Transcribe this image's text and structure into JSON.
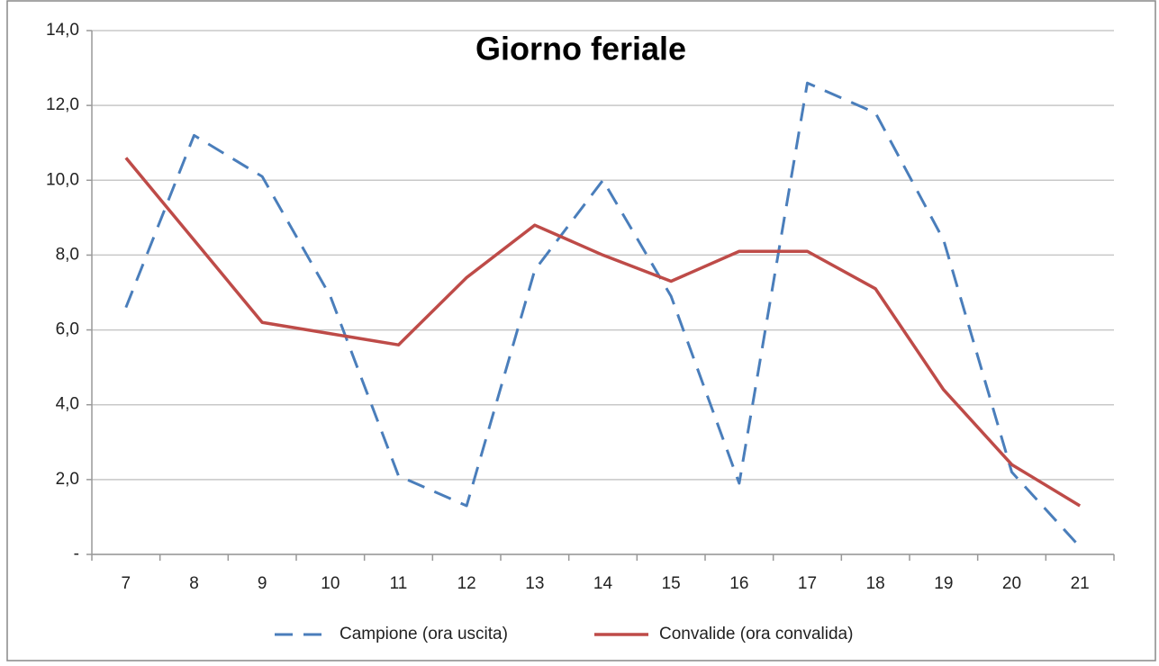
{
  "chart_data": {
    "type": "line",
    "title": "Giorno feriale",
    "categories": [
      "7",
      "8",
      "9",
      "10",
      "11",
      "12",
      "13",
      "14",
      "15",
      "16",
      "17",
      "18",
      "19",
      "20",
      "21"
    ],
    "series": [
      {
        "name": "Campione (ora uscita)",
        "color": "#4a7ebb",
        "dash": true,
        "values": [
          6.6,
          11.2,
          10.1,
          6.9,
          2.1,
          1.3,
          7.6,
          10.0,
          6.9,
          1.9,
          12.6,
          11.8,
          8.4,
          2.2,
          0.2
        ]
      },
      {
        "name": "Convalide (ora convalida)",
        "color": "#be4b48",
        "dash": false,
        "values": [
          10.6,
          8.4,
          6.2,
          5.9,
          5.6,
          7.4,
          8.8,
          8.0,
          7.3,
          8.1,
          8.1,
          7.1,
          4.4,
          2.4,
          1.3
        ]
      }
    ],
    "ylim": [
      0,
      14
    ],
    "yticks": [
      {
        "value": 0,
        "label": "-"
      },
      {
        "value": 2,
        "label": "2,0"
      },
      {
        "value": 4,
        "label": "4,0"
      },
      {
        "value": 6,
        "label": "6,0"
      },
      {
        "value": 8,
        "label": "8,0"
      },
      {
        "value": 10,
        "label": "10,0"
      },
      {
        "value": 12,
        "label": "12,0"
      },
      {
        "value": 14,
        "label": "14,0"
      }
    ],
    "grid": true,
    "legend": "bottom"
  }
}
